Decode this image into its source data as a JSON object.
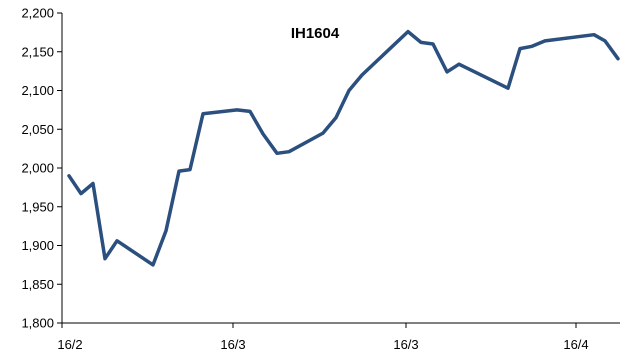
{
  "chart_data": {
    "type": "line",
    "title": "IH1604",
    "xlabel": "",
    "ylabel": "",
    "ylim": [
      1800,
      2200
    ],
    "yticks": [
      1800,
      1850,
      1900,
      1950,
      2000,
      2050,
      2100,
      2150,
      2200
    ],
    "ytick_labels": [
      "1,800",
      "1,850",
      "1,900",
      "1,950",
      "2,000",
      "2,050",
      "2,100",
      "2,150",
      "2,200"
    ],
    "xtick_labels": [
      "16/2",
      "16/3",
      "16/3",
      "16/4"
    ],
    "grid": false,
    "legend": "none",
    "colors": {
      "line": "#2b4f7e",
      "axis": "#000000"
    },
    "series": [
      {
        "values": [
          1990,
          1967,
          1980,
          1883,
          1906,
          1875,
          1919,
          1996,
          1998,
          2070,
          2075,
          2073,
          2044,
          2019,
          2021,
          2045,
          2065,
          2100,
          2120,
          2176,
          2162,
          2160,
          2124,
          2134,
          2103,
          2154,
          2157,
          2164,
          2172,
          2164,
          2141
        ]
      }
    ]
  }
}
